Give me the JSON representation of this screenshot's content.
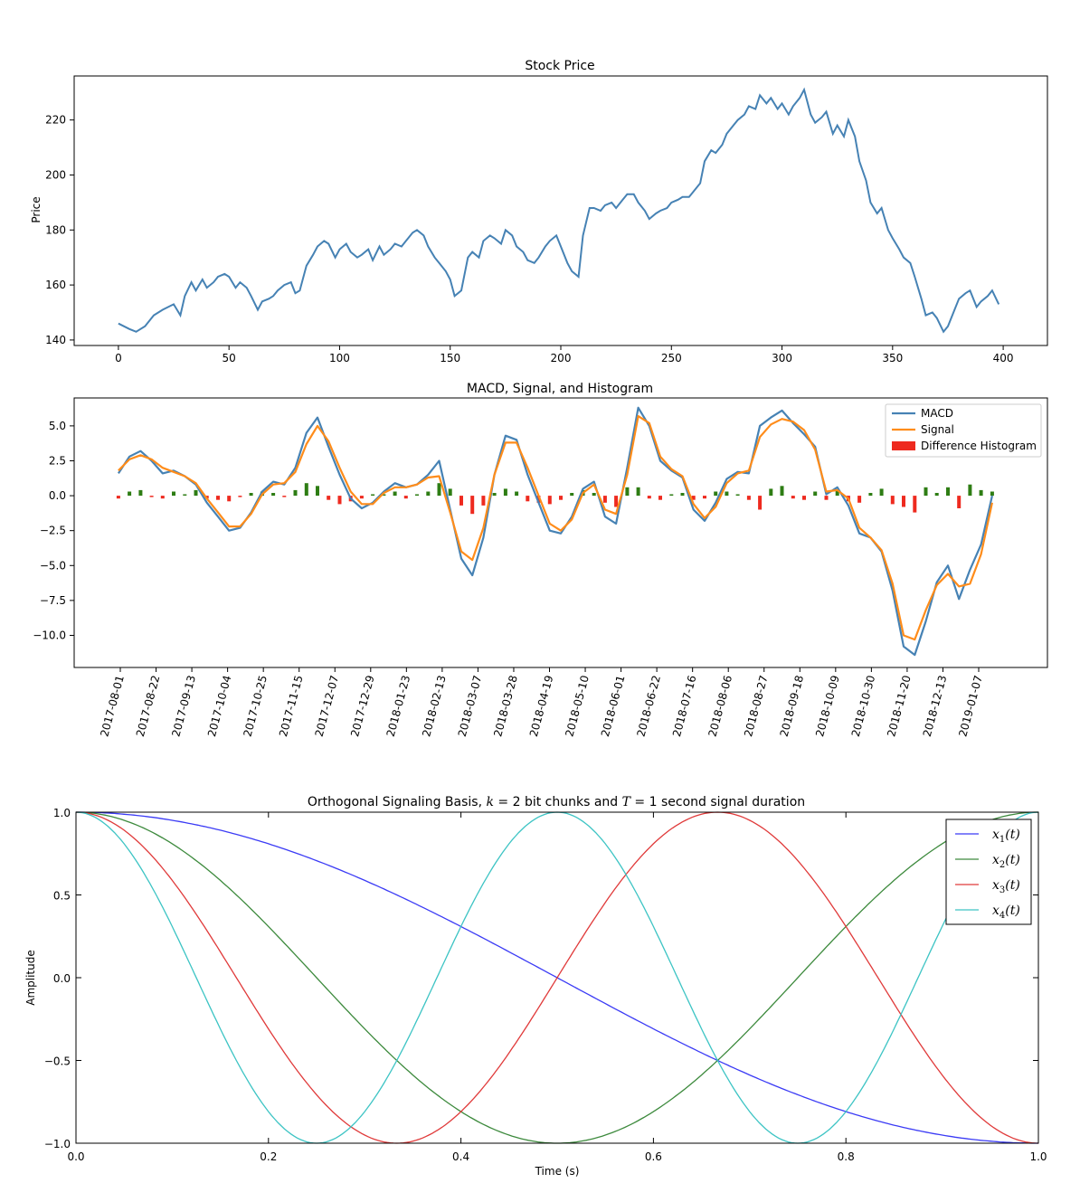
{
  "chart_data": [
    {
      "type": "line",
      "title": "Stock Price",
      "xlabel": "",
      "ylabel": "Price",
      "xlim": [
        -20,
        420
      ],
      "ylim": [
        138,
        236
      ],
      "xticks": [
        0,
        50,
        100,
        150,
        200,
        250,
        300,
        350,
        400
      ],
      "xtick_labels": [
        "0",
        "50",
        "100",
        "150",
        "200",
        "250",
        "300",
        "350",
        "400"
      ],
      "yticks": [
        140,
        160,
        180,
        200,
        220
      ],
      "ytick_labels": [
        "140",
        "160",
        "180",
        "200",
        "220"
      ],
      "grid": false,
      "series": [
        {
          "color": "#4682b4",
          "x": [
            0,
            5,
            8,
            12,
            16,
            20,
            25,
            28,
            30,
            33,
            35,
            38,
            40,
            43,
            45,
            48,
            50,
            53,
            55,
            58,
            60,
            63,
            65,
            68,
            70,
            72,
            75,
            78,
            80,
            82,
            85,
            88,
            90,
            93,
            95,
            98,
            100,
            103,
            105,
            108,
            110,
            113,
            115,
            118,
            120,
            123,
            125,
            128,
            130,
            133,
            135,
            138,
            140,
            143,
            145,
            148,
            150,
            152,
            155,
            158,
            160,
            163,
            165,
            168,
            170,
            173,
            175,
            178,
            180,
            183,
            185,
            188,
            190,
            193,
            195,
            198,
            200,
            203,
            205,
            208,
            210,
            213,
            215,
            218,
            220,
            223,
            225,
            228,
            230,
            233,
            235,
            238,
            240,
            243,
            245,
            248,
            250,
            253,
            255,
            258,
            260,
            263,
            265,
            268,
            270,
            273,
            275,
            278,
            280,
            283,
            285,
            288,
            290,
            293,
            295,
            298,
            300,
            303,
            305,
            308,
            310,
            313,
            315,
            318,
            320,
            323,
            325,
            328,
            330,
            333,
            335,
            338,
            340,
            343,
            345,
            348,
            350,
            353,
            355,
            358,
            360,
            363,
            365,
            368,
            370,
            373,
            375,
            378,
            380,
            383,
            385,
            388,
            390,
            393,
            395,
            398
          ],
          "values": [
            146,
            144,
            143,
            145,
            149,
            151,
            153,
            149,
            156,
            161,
            158,
            162,
            159,
            161,
            163,
            164,
            163,
            159,
            161,
            159,
            156,
            151,
            154,
            155,
            156,
            158,
            160,
            161,
            157,
            158,
            167,
            171,
            174,
            176,
            175,
            170,
            173,
            175,
            172,
            170,
            171,
            173,
            169,
            174,
            171,
            173,
            175,
            174,
            176,
            179,
            180,
            178,
            174,
            170,
            168,
            165,
            162,
            156,
            158,
            170,
            172,
            170,
            176,
            178,
            177,
            175,
            180,
            178,
            174,
            172,
            169,
            168,
            170,
            174,
            176,
            178,
            174,
            168,
            165,
            163,
            178,
            188,
            188,
            187,
            189,
            190,
            188,
            191,
            193,
            193,
            190,
            187,
            184,
            186,
            187,
            188,
            190,
            191,
            192,
            192,
            194,
            197,
            205,
            209,
            208,
            211,
            215,
            218,
            220,
            222,
            225,
            224,
            229,
            226,
            228,
            224,
            226,
            222,
            225,
            228,
            231,
            222,
            219,
            221,
            223,
            215,
            218,
            214,
            220,
            214,
            205,
            198,
            190,
            186,
            188,
            180,
            177,
            173,
            170,
            168,
            163,
            155,
            149,
            150,
            148,
            143,
            145,
            151,
            155,
            157,
            158,
            152,
            154,
            156,
            158,
            153
          ]
        }
      ]
    },
    {
      "type": "line",
      "title": "MACD, Signal, and Histogram",
      "xlabel": "",
      "ylabel": "",
      "ylim": [
        -12.3,
        7.0
      ],
      "yticks": [
        -10.0,
        -7.5,
        -5.0,
        -2.5,
        0.0,
        2.5,
        5.0
      ],
      "ytick_labels": [
        "−10.0",
        "−7.5",
        "−5.0",
        "−2.5",
        "0.0",
        "2.5",
        "5.0"
      ],
      "x_dates": [
        "2017-08-01",
        "2017-08-22",
        "2017-09-13",
        "2017-10-04",
        "2017-10-25",
        "2017-11-15",
        "2017-12-07",
        "2017-12-29",
        "2018-01-23",
        "2018-02-13",
        "2018-03-07",
        "2018-03-28",
        "2018-04-19",
        "2018-05-10",
        "2018-06-01",
        "2018-06-22",
        "2018-07-16",
        "2018-08-06",
        "2018-08-27",
        "2018-09-18",
        "2018-10-09",
        "2018-10-30",
        "2018-11-20",
        "2018-12-13",
        "2019-01-07"
      ],
      "legend": {
        "position": "top-right",
        "entries": [
          "MACD",
          "Signal",
          "Difference Histogram"
        ]
      },
      "grid": false,
      "series": [
        {
          "name": "MACD",
          "color": "#4682b4",
          "x_index": [
            0,
            5,
            10,
            15,
            20,
            25,
            30,
            35,
            40,
            45,
            50,
            55,
            60,
            65,
            70,
            75,
            80,
            85,
            90,
            95,
            100,
            105,
            110,
            115,
            120,
            125,
            130,
            135,
            140,
            145,
            150,
            155,
            160,
            165,
            170,
            175,
            180,
            185,
            190,
            195,
            200,
            205,
            210,
            215,
            220,
            225,
            230,
            235,
            240,
            245,
            250,
            255,
            260,
            265,
            270,
            275,
            280,
            285,
            290,
            295,
            300,
            305,
            310,
            315,
            320,
            325,
            330,
            335,
            340,
            345,
            350,
            355,
            360,
            365,
            370,
            375,
            380,
            385,
            390,
            395
          ],
          "values": [
            1.6,
            2.8,
            3.2,
            2.5,
            1.6,
            1.8,
            1.4,
            0.8,
            -0.5,
            -1.5,
            -2.5,
            -2.3,
            -1.2,
            0.3,
            1.0,
            0.8,
            2.0,
            4.5,
            5.6,
            3.5,
            1.5,
            -0.2,
            -0.9,
            -0.5,
            0.3,
            0.9,
            0.6,
            0.8,
            1.5,
            2.5,
            -1.0,
            -4.5,
            -5.7,
            -3.0,
            1.5,
            4.3,
            4.0,
            1.5,
            -0.5,
            -2.5,
            -2.7,
            -1.5,
            0.5,
            1.0,
            -1.5,
            -2.0,
            2.0,
            6.3,
            5.0,
            2.5,
            1.8,
            1.3,
            -1.0,
            -1.8,
            -0.5,
            1.2,
            1.7,
            1.6,
            5.0,
            5.6,
            6.1,
            5.2,
            4.4,
            3.5,
            0.1,
            0.6,
            -0.7,
            -2.7,
            -3.0,
            -4.0,
            -6.8,
            -10.8,
            -11.4,
            -9.0,
            -6.2,
            -5.0,
            -7.4,
            -5.3,
            -3.5,
            0.0
          ]
        },
        {
          "name": "Signal",
          "color": "#ff8c1a",
          "x_index": [
            0,
            5,
            10,
            15,
            20,
            25,
            30,
            35,
            40,
            45,
            50,
            55,
            60,
            65,
            70,
            75,
            80,
            85,
            90,
            95,
            100,
            105,
            110,
            115,
            120,
            125,
            130,
            135,
            140,
            145,
            150,
            155,
            160,
            165,
            170,
            175,
            180,
            185,
            190,
            195,
            200,
            205,
            210,
            215,
            220,
            225,
            230,
            235,
            240,
            245,
            250,
            255,
            260,
            265,
            270,
            275,
            280,
            285,
            290,
            295,
            300,
            305,
            310,
            315,
            320,
            325,
            330,
            335,
            340,
            345,
            350,
            355,
            360,
            365,
            370,
            375,
            380,
            385,
            390,
            395
          ],
          "values": [
            1.8,
            2.6,
            2.9,
            2.6,
            2.0,
            1.7,
            1.4,
            0.9,
            -0.2,
            -1.2,
            -2.2,
            -2.2,
            -1.3,
            0.1,
            0.8,
            0.9,
            1.7,
            3.7,
            5.0,
            3.9,
            2.0,
            0.3,
            -0.6,
            -0.6,
            0.2,
            0.6,
            0.6,
            0.8,
            1.3,
            1.4,
            -1.2,
            -4.0,
            -4.6,
            -2.3,
            1.5,
            3.8,
            3.8,
            2.0,
            0.0,
            -2.0,
            -2.5,
            -1.7,
            0.2,
            0.8,
            -1.0,
            -1.3,
            1.5,
            5.7,
            5.2,
            2.8,
            1.9,
            1.4,
            -0.6,
            -1.6,
            -0.8,
            0.9,
            1.6,
            1.8,
            4.2,
            5.1,
            5.5,
            5.3,
            4.7,
            3.3,
            0.3,
            0.4,
            -0.2,
            -2.3,
            -3.0,
            -3.9,
            -6.3,
            -10.0,
            -10.3,
            -8.2,
            -6.4,
            -5.6,
            -6.5,
            -6.3,
            -4.2,
            -0.5
          ]
        },
        {
          "name": "Difference Histogram",
          "type": "bar",
          "positive_color": "#2e7d14",
          "negative_color": "#ee2a1f",
          "x_index": [
            0,
            5,
            10,
            15,
            20,
            25,
            30,
            35,
            40,
            45,
            50,
            55,
            60,
            65,
            70,
            75,
            80,
            85,
            90,
            95,
            100,
            105,
            110,
            115,
            120,
            125,
            130,
            135,
            140,
            145,
            150,
            155,
            160,
            165,
            170,
            175,
            180,
            185,
            190,
            195,
            200,
            205,
            210,
            215,
            220,
            225,
            230,
            235,
            240,
            245,
            250,
            255,
            260,
            265,
            270,
            275,
            280,
            285,
            290,
            295,
            300,
            305,
            310,
            315,
            320,
            325,
            330,
            335,
            340,
            345,
            350,
            355,
            360,
            365,
            370,
            375,
            380,
            385,
            390,
            395
          ],
          "values": [
            -0.2,
            0.3,
            0.4,
            -0.1,
            -0.2,
            0.3,
            0.1,
            0.4,
            -0.2,
            -0.3,
            -0.4,
            -0.1,
            0.2,
            0.3,
            0.2,
            -0.1,
            0.4,
            0.9,
            0.7,
            -0.3,
            -0.6,
            -0.4,
            -0.2,
            0.1,
            0.1,
            0.3,
            -0.2,
            0.1,
            0.3,
            0.9,
            0.5,
            -0.7,
            -1.3,
            -0.7,
            0.2,
            0.5,
            0.3,
            -0.4,
            -0.5,
            -0.6,
            -0.3,
            0.2,
            0.4,
            0.2,
            -0.5,
            -0.8,
            0.6,
            0.6,
            -0.2,
            -0.3,
            0.1,
            0.2,
            -0.3,
            -0.2,
            0.3,
            0.3,
            0.1,
            -0.3,
            -1.0,
            0.5,
            0.7,
            -0.2,
            -0.3,
            0.3,
            -0.3,
            0.4,
            -0.4,
            -0.5,
            0.2,
            0.5,
            -0.6,
            -0.8,
            -1.2,
            0.6,
            0.2,
            0.6,
            -0.9,
            0.8,
            0.4,
            0.3
          ]
        }
      ]
    },
    {
      "type": "line",
      "title_parts": [
        "Orthogonal Signaling Basis, ",
        "k",
        " = 2 bit chunks and ",
        "T",
        " = 1 second signal duration"
      ],
      "xlabel": "Time (s)",
      "ylabel": "Amplitude",
      "xlim": [
        0.0,
        1.0
      ],
      "ylim": [
        -1.0,
        1.0
      ],
      "xticks": [
        0.0,
        0.2,
        0.4,
        0.6,
        0.8,
        1.0
      ],
      "xtick_labels": [
        "0.0",
        "0.2",
        "0.4",
        "0.6",
        "0.8",
        "1.0"
      ],
      "yticks": [
        -1.0,
        -0.5,
        0.0,
        0.5,
        1.0
      ],
      "ytick_labels": [
        "−1.0",
        "−0.5",
        "0.0",
        "0.5",
        "1.0"
      ],
      "grid": false,
      "legend": {
        "position": "top-right"
      },
      "series": [
        {
          "name_parts": [
            "x",
            "1",
            "(t)"
          ],
          "color": "#3b3bf5",
          "function": "cos(2π·1·t/2)",
          "x": [
            0.0,
            0.125,
            0.25,
            0.375,
            0.5,
            0.625,
            0.75,
            0.875,
            1.0
          ],
          "values": [
            1.0,
            0.924,
            0.707,
            0.383,
            0.0,
            -0.383,
            -0.707,
            -0.924,
            -1.0
          ]
        },
        {
          "name_parts": [
            "x",
            "2",
            "(t)"
          ],
          "color": "#3d8a3d",
          "x": [
            0.0,
            0.125,
            0.25,
            0.375,
            0.5,
            0.625,
            0.75,
            0.875,
            1.0
          ],
          "values": [
            1.0,
            0.707,
            0.0,
            -0.707,
            -1.0,
            -0.707,
            0.0,
            0.707,
            1.0
          ]
        },
        {
          "name_parts": [
            "x",
            "3",
            "(t)"
          ],
          "color": "#e03a3a",
          "x": [
            0.0,
            0.125,
            0.25,
            0.375,
            0.5,
            0.625,
            0.75,
            0.875,
            1.0
          ],
          "values": [
            1.0,
            0.383,
            -0.707,
            -0.924,
            0.0,
            0.924,
            0.707,
            -0.383,
            -1.0
          ]
        },
        {
          "name_parts": [
            "x",
            "4",
            "(t)"
          ],
          "color": "#3dc4c4",
          "x": [
            0.0,
            0.125,
            0.25,
            0.375,
            0.5,
            0.625,
            0.75,
            0.875,
            1.0
          ],
          "values": [
            1.0,
            0.0,
            -1.0,
            0.0,
            1.0,
            0.0,
            -1.0,
            0.0,
            1.0
          ]
        }
      ]
    }
  ]
}
